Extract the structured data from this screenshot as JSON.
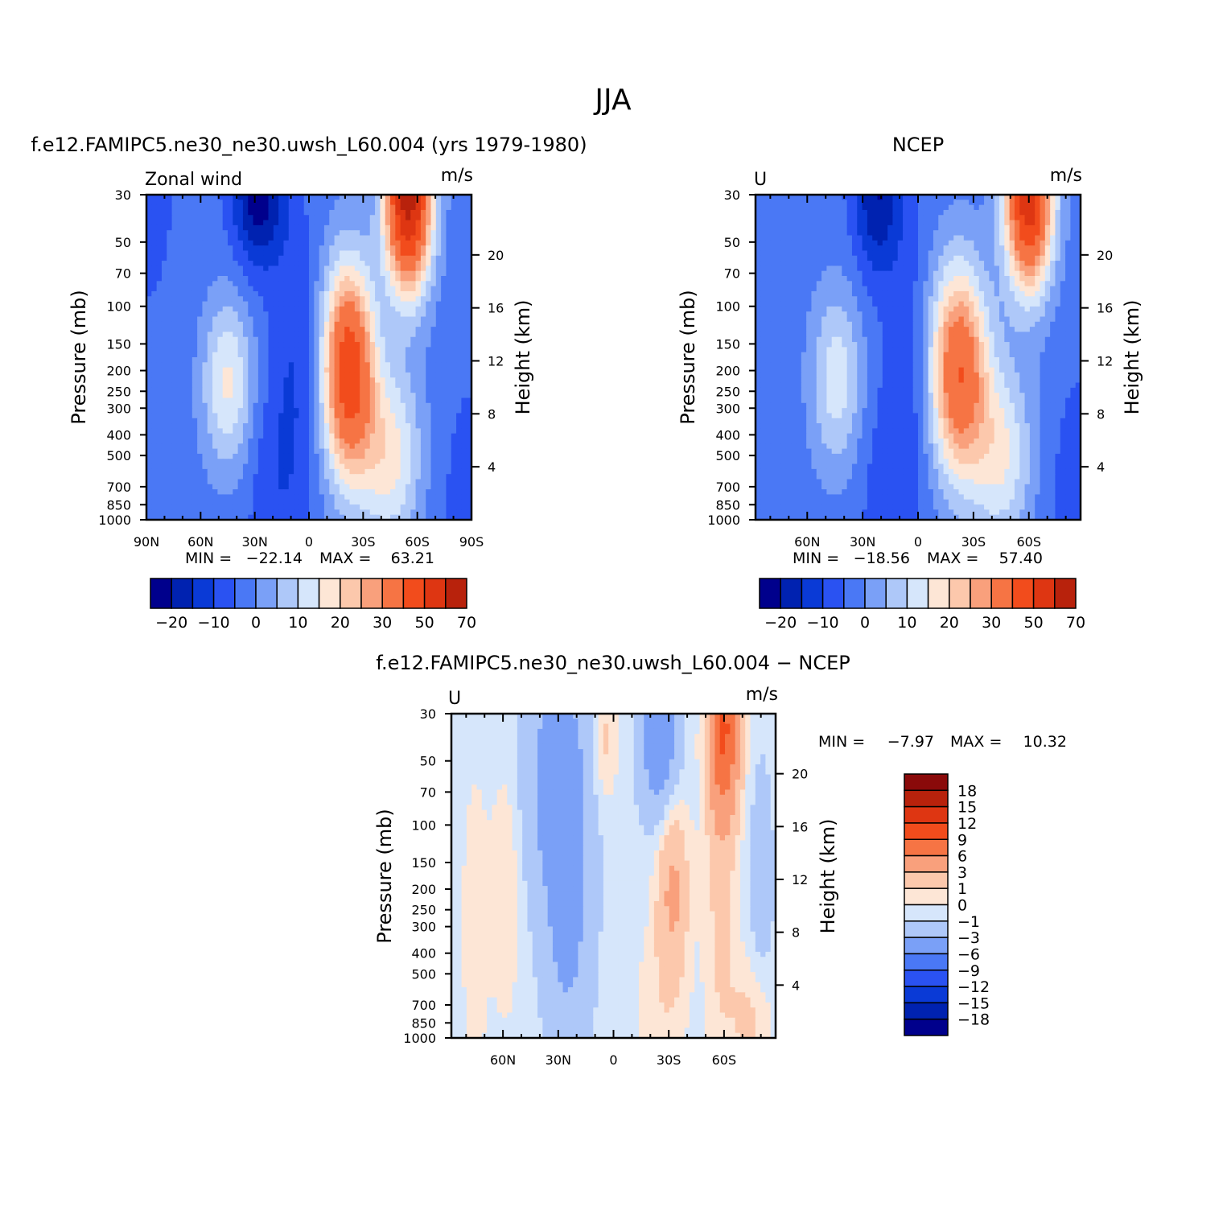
{
  "figure": {
    "title": "JJA"
  },
  "chart_data": [
    {
      "type": "heatmap",
      "name": "model",
      "subtitle": "f.e12.FAMIPC5.ne30_ne30.uwsh_L60.004 (yrs 1979-1980)",
      "left_string": "Zonal wind",
      "units": "m/s",
      "xlabel": "",
      "ylabel": "Pressure (mb)",
      "y2label": "Height (km)",
      "xlim": [
        90,
        -90
      ],
      "x_ticks": [
        90,
        60,
        30,
        0,
        -30,
        -60,
        -90
      ],
      "x_tick_labels": [
        "90N",
        "60N",
        "30N",
        "0",
        "30S",
        "60S",
        "90S"
      ],
      "ylim": [
        1000,
        30
      ],
      "y_ticks": [
        30,
        50,
        70,
        100,
        150,
        200,
        250,
        300,
        400,
        500,
        700,
        850,
        1000
      ],
      "y_tick_labels": [
        "30",
        "50",
        "70",
        "100",
        "150",
        "200",
        "250",
        "300",
        "400",
        "500",
        "700",
        "850",
        "1000"
      ],
      "height_ticks": [
        4,
        8,
        12,
        16,
        20
      ],
      "height_tick_labels": [
        "4",
        "8",
        "12",
        "16",
        "20"
      ],
      "min_label": "MIN =",
      "min_value": "−22.14",
      "max_label": "MAX =",
      "max_value": "63.21",
      "levels": [
        -25,
        -20,
        -15,
        -10,
        -5,
        0,
        5,
        10,
        15,
        20,
        25,
        30,
        40,
        50,
        60,
        70
      ],
      "colorbar_labels": [
        "−20",
        "−10",
        "0",
        "10",
        "20",
        "30",
        "50",
        "70"
      ],
      "features": [
        {
          "kind": "base",
          "value": -3
        },
        {
          "lat": 45,
          "p": 230,
          "value": 19,
          "sx": 10,
          "sy": 0.65
        },
        {
          "lat": 8,
          "p": 220,
          "value": -7,
          "sx": 9,
          "sy": 1.2
        },
        {
          "lat": 28,
          "p": 30,
          "value": -20,
          "sx": 10,
          "sy": 0.55
        },
        {
          "lat": 22,
          "p": 700,
          "value": -5,
          "sx": 10,
          "sy": 0.8
        },
        {
          "lat": -22,
          "p": 200,
          "value": 50,
          "sx": 10,
          "sy": 0.8
        },
        {
          "lat": -55,
          "p": 30,
          "value": 68,
          "sx": 9,
          "sy": 0.7
        },
        {
          "lat": -45,
          "p": 500,
          "value": 20,
          "sx": 12,
          "sy": 0.7
        },
        {
          "lat": -90,
          "p": 1000,
          "value": -5,
          "sx": 12,
          "sy": 1.0
        },
        {
          "lat": 90,
          "p": 30,
          "value": -3,
          "sx": 15,
          "sy": 1.2
        }
      ]
    },
    {
      "type": "heatmap",
      "name": "ncep",
      "subtitle": "NCEP",
      "left_string": "U",
      "units": "m/s",
      "xlabel": "",
      "ylabel": "Pressure (mb)",
      "y2label": "Height (km)",
      "xlim": [
        88,
        -88
      ],
      "x_ticks": [
        60,
        30,
        0,
        -30,
        -60
      ],
      "x_tick_labels": [
        "60N",
        "30N",
        "0",
        "30S",
        "60S"
      ],
      "ylim": [
        1000,
        30
      ],
      "y_ticks": [
        30,
        50,
        70,
        100,
        150,
        200,
        250,
        300,
        400,
        500,
        700,
        850,
        1000
      ],
      "y_tick_labels": [
        "30",
        "50",
        "70",
        "100",
        "150",
        "200",
        "250",
        "300",
        "400",
        "500",
        "700",
        "850",
        "1000"
      ],
      "height_ticks": [
        4,
        8,
        12,
        16,
        20
      ],
      "height_tick_labels": [
        "4",
        "8",
        "12",
        "16",
        "20"
      ],
      "min_label": "MIN =",
      "min_value": "−18.56",
      "max_label": "MAX =",
      "max_value": "57.40",
      "levels": [
        -25,
        -20,
        -15,
        -10,
        -5,
        0,
        5,
        10,
        15,
        20,
        25,
        30,
        40,
        50,
        60,
        70
      ],
      "colorbar_labels": [
        "−20",
        "−10",
        "0",
        "10",
        "20",
        "30",
        "50",
        "70"
      ],
      "features": [
        {
          "kind": "base",
          "value": -3
        },
        {
          "lat": 44,
          "p": 220,
          "value": 16,
          "sx": 10,
          "sy": 0.7
        },
        {
          "lat": 5,
          "p": 220,
          "value": -6,
          "sx": 9,
          "sy": 1.2
        },
        {
          "lat": 22,
          "p": 30,
          "value": -17,
          "sx": 9,
          "sy": 0.6
        },
        {
          "lat": 20,
          "p": 700,
          "value": -4,
          "sx": 10,
          "sy": 0.8
        },
        {
          "lat": -22,
          "p": 200,
          "value": 42,
          "sx": 11,
          "sy": 0.8
        },
        {
          "lat": -60,
          "p": 30,
          "value": 60,
          "sx": 9,
          "sy": 0.7
        },
        {
          "lat": -45,
          "p": 500,
          "value": 18,
          "sx": 12,
          "sy": 0.7
        },
        {
          "lat": -88,
          "p": 1000,
          "value": -6,
          "sx": 12,
          "sy": 1.0
        }
      ]
    },
    {
      "type": "heatmap",
      "name": "difference",
      "subtitle": "f.e12.FAMIPC5.ne30_ne30.uwsh_L60.004 − NCEP",
      "left_string": "U",
      "units": "m/s",
      "xlabel": "",
      "ylabel": "Pressure (mb)",
      "y2label": "Height (km)",
      "xlim": [
        88,
        -88
      ],
      "x_ticks": [
        60,
        30,
        0,
        -30,
        -60
      ],
      "x_tick_labels": [
        "60N",
        "30N",
        "0",
        "30S",
        "60S"
      ],
      "ylim": [
        1000,
        30
      ],
      "y_ticks": [
        30,
        50,
        70,
        100,
        150,
        200,
        250,
        300,
        400,
        500,
        700,
        850,
        1000
      ],
      "y_tick_labels": [
        "30",
        "50",
        "70",
        "100",
        "150",
        "200",
        "250",
        "300",
        "400",
        "500",
        "700",
        "850",
        "1000"
      ],
      "height_ticks": [
        4,
        8,
        12,
        16,
        20
      ],
      "height_tick_labels": [
        "4",
        "8",
        "12",
        "16",
        "20"
      ],
      "min_label": "MIN =",
      "min_value": "−7.97",
      "max_label": "MAX =",
      "max_value": "10.32",
      "levels": [
        -21,
        -18,
        -15,
        -12,
        -9,
        -6,
        -3,
        -1,
        0,
        1,
        3,
        6,
        9,
        12,
        15,
        18,
        21
      ],
      "colorbar_labels": [
        "18",
        "15",
        "12",
        "9",
        "6",
        "3",
        "1",
        "0",
        "−1",
        "−3",
        "−6",
        "−9",
        "−12",
        "−15",
        "−18"
      ],
      "features": [
        {
          "kind": "base",
          "value": -0.5
        },
        {
          "lat": 75,
          "p": 300,
          "value": 0.8,
          "sx": 7,
          "sy": 1.6
        },
        {
          "lat": 58,
          "p": 200,
          "value": 1.5,
          "sx": 5,
          "sy": 0.9
        },
        {
          "lat": 30,
          "p": 60,
          "value": -4,
          "sx": 12,
          "sy": 0.9
        },
        {
          "lat": 25,
          "p": 300,
          "value": -3,
          "sx": 9,
          "sy": 1.0
        },
        {
          "lat": 5,
          "p": 40,
          "value": 2,
          "sx": 5,
          "sy": 0.5
        },
        {
          "lat": -25,
          "p": 40,
          "value": -5,
          "sx": 7,
          "sy": 0.6
        },
        {
          "lat": -32,
          "p": 200,
          "value": 4,
          "sx": 6,
          "sy": 0.7
        },
        {
          "lat": -25,
          "p": 700,
          "value": 1,
          "sx": 10,
          "sy": 0.6
        },
        {
          "lat": -60,
          "p": 35,
          "value": 9.5,
          "sx": 6,
          "sy": 0.7
        },
        {
          "lat": -58,
          "p": 250,
          "value": 1.8,
          "sx": 6,
          "sy": 1.3
        },
        {
          "lat": -75,
          "p": 800,
          "value": 2,
          "sx": 8,
          "sy": 0.5
        },
        {
          "lat": -80,
          "p": 200,
          "value": -1.5,
          "sx": 5,
          "sy": 1.0
        }
      ]
    }
  ]
}
